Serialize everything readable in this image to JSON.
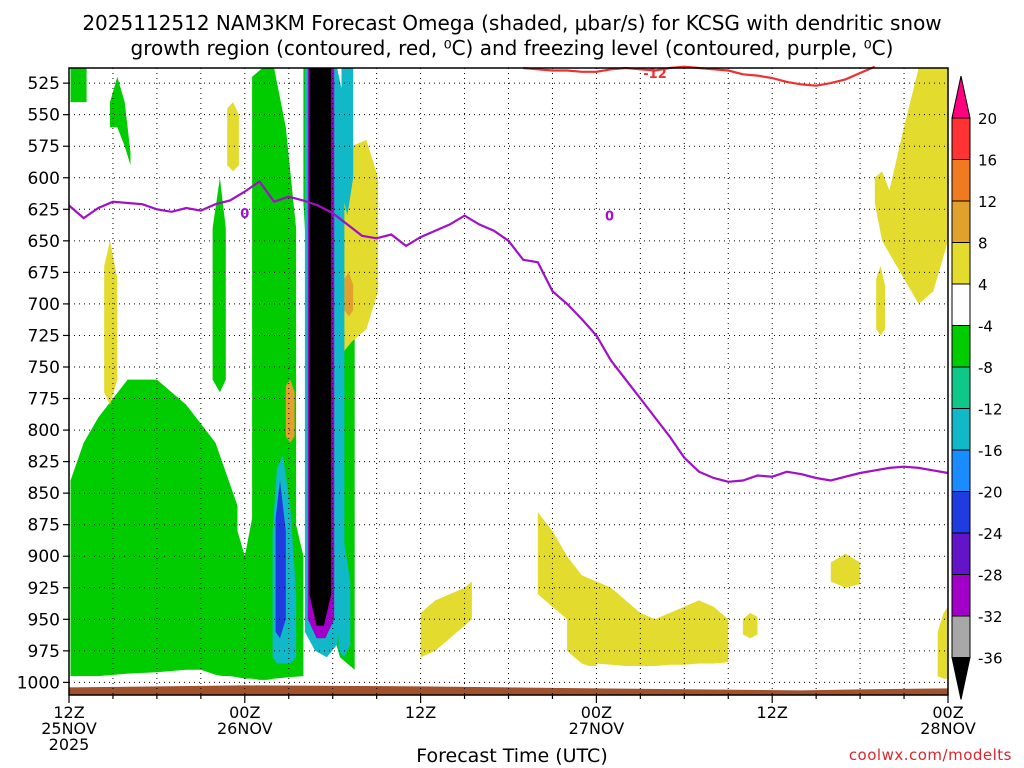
{
  "chart_data": {
    "type": "heatmap",
    "title": {
      "line1": "2025112512 NAM3KM Forecast Omega (shaded, μbar/s) for KCSG with dendritic snow",
      "line2": "growth region (contoured, red, ⁰C) and freezing level (contoured, purple, ⁰C)"
    },
    "xlabel": "Forecast Time (UTC)",
    "ylabel": "",
    "credit": "coolwx.com/modelts",
    "xlim_hours": [
      0,
      60
    ],
    "ylim_hpa": [
      513,
      1010
    ],
    "y_ticks": [
      525,
      550,
      575,
      600,
      625,
      650,
      675,
      700,
      725,
      750,
      775,
      800,
      825,
      850,
      875,
      900,
      925,
      950,
      975,
      1000
    ],
    "x_ticks": [
      {
        "hour": 0,
        "lines": [
          "12Z",
          "25NOV",
          "2025"
        ]
      },
      {
        "hour": 12,
        "lines": [
          "00Z",
          "26NOV"
        ]
      },
      {
        "hour": 24,
        "lines": [
          "12Z"
        ]
      },
      {
        "hour": 36,
        "lines": [
          "00Z",
          "27NOV"
        ]
      },
      {
        "hour": 48,
        "lines": [
          "12Z"
        ]
      },
      {
        "hour": 60,
        "lines": [
          "00Z",
          "28NOV"
        ]
      }
    ],
    "colorbar": {
      "levels": [
        {
          "label": "20",
          "color": "#ff0080"
        },
        {
          "label": "16",
          "color": "#ff3333"
        },
        {
          "label": "12",
          "color": "#f07a20"
        },
        {
          "label": "8",
          "color": "#e0a22c"
        },
        {
          "label": "4",
          "color": "#e3db2d"
        },
        {
          "label": "-4",
          "color": "#ffffff"
        },
        {
          "label": "-8",
          "color": "#00cc00"
        },
        {
          "label": "-12",
          "color": "#10c78a"
        },
        {
          "label": "-16",
          "color": "#10b8c8"
        },
        {
          "label": "-20",
          "color": "#1a8cff"
        },
        {
          "label": "-24",
          "color": "#1f3ce0"
        },
        {
          "label": "-28",
          "color": "#6414c8"
        },
        {
          "label": "-32",
          "color": "#a200c8"
        },
        {
          "label": "-36",
          "color": "#a8a8a8"
        },
        {
          "label": "",
          "color": "#000000"
        }
      ]
    },
    "freezing_level": {
      "name": "freezing level (0°C)",
      "color": "#a010c8",
      "label": "0",
      "hours": [
        0,
        1,
        2,
        3,
        4,
        5,
        6,
        7,
        8,
        9,
        10,
        11,
        12,
        13,
        14,
        15,
        16,
        17,
        18,
        19,
        20,
        21,
        22,
        23,
        24,
        25,
        26,
        27,
        28,
        29,
        30,
        31,
        32,
        33,
        34,
        35,
        36,
        37,
        38,
        39,
        40,
        41,
        42,
        43,
        44,
        45,
        46,
        47,
        48,
        49,
        50,
        51,
        52,
        53,
        54,
        55,
        56,
        57,
        58,
        59,
        60
      ],
      "hpa": [
        622,
        632,
        624,
        619,
        620,
        621,
        625,
        627,
        624,
        626,
        621,
        618,
        611,
        603,
        619,
        615,
        618,
        622,
        628,
        637,
        646,
        648,
        645,
        654,
        647,
        642,
        637,
        630,
        637,
        642,
        650,
        665,
        667,
        690,
        700,
        712,
        725,
        745,
        760,
        775,
        790,
        805,
        822,
        833,
        838,
        841,
        840,
        836,
        837,
        833,
        835,
        838,
        840,
        837,
        834,
        832,
        830,
        829,
        830,
        832,
        834
      ]
    },
    "dgz_line": {
      "name": "dendritic snow growth region (-12°C)",
      "color": "#f03030",
      "label": "-12",
      "hours": [
        31,
        32,
        33,
        34,
        35,
        36,
        37,
        38,
        39,
        40,
        41,
        42,
        43,
        44,
        45,
        46,
        47,
        48,
        49,
        50,
        51,
        52,
        53,
        54,
        55
      ],
      "hpa": [
        513,
        514,
        515,
        515,
        516,
        516,
        514,
        513,
        514,
        515,
        513,
        512,
        513,
        514,
        515,
        518,
        519,
        521,
        524,
        526,
        527,
        525,
        522,
        517,
        512
      ]
    },
    "omega_regions": [
      {
        "name": "green-1",
        "color": "#00cc00",
        "hours": [
          0.1,
          0.3,
          0.9,
          1.1,
          1.2
        ],
        "hpa_top": [
          513,
          513,
          513,
          513,
          513
        ],
        "hpa_bot": [
          540,
          540,
          540,
          540,
          540
        ]
      },
      {
        "name": "green-2",
        "color": "#00cc00",
        "hours": [
          0.1,
          1,
          2,
          4,
          6,
          8,
          10,
          11.5
        ],
        "hpa_top": [
          840,
          810,
          790,
          760,
          760,
          780,
          810,
          860
        ],
        "hpa_bot": [
          995,
          995,
          995,
          993,
          992,
          990,
          990,
          990
        ]
      },
      {
        "name": "green-3",
        "color": "#00cc00",
        "hours": [
          2.8,
          3.3,
          3.8,
          4.2
        ],
        "hpa_top": [
          540,
          520,
          540,
          580
        ],
        "hpa_bot": [
          560,
          560,
          575,
          590
        ]
      },
      {
        "name": "green-4",
        "color": "#00cc00",
        "hours": [
          9,
          9.5,
          10,
          10.5,
          11,
          11.5,
          12,
          12.5,
          13,
          13.5,
          14,
          15,
          16
        ],
        "hpa_top": [
          890,
          880,
          870,
          860,
          870,
          880,
          900,
          870,
          810,
          790,
          800,
          850,
          900
        ],
        "hpa_bot": [
          990,
          992,
          994,
          995,
          995,
          996,
          997,
          997,
          998,
          998,
          997,
          996,
          995
        ]
      },
      {
        "name": "green-5",
        "color": "#00cc00",
        "hours": [
          9.8,
          10.3,
          10.7
        ],
        "hpa_top": [
          640,
          600,
          640
        ],
        "hpa_bot": [
          760,
          770,
          760
        ]
      },
      {
        "name": "green-6",
        "color": "#00cc00",
        "hours": [
          12.5,
          13.2,
          14,
          14.8,
          15.5
        ],
        "hpa_top": [
          520,
          513,
          513,
          560,
          640
        ],
        "hpa_bot": [
          900,
          900,
          930,
          960,
          990
        ]
      },
      {
        "name": "green-7",
        "color": "#00cc00",
        "hours": [
          16,
          16.5,
          17,
          17.5,
          18,
          18.5,
          19,
          19.5
        ],
        "hpa_top": [
          513,
          513,
          513,
          513,
          530,
          560,
          620,
          700
        ],
        "hpa_bot": [
          620,
          720,
          820,
          910,
          960,
          980,
          985,
          990
        ]
      },
      {
        "name": "green-8",
        "color": "#00cc00",
        "hours": [
          18.3,
          18.8,
          19.3
        ],
        "hpa_top": [
          750,
          740,
          760
        ],
        "hpa_bot": [
          860,
          860,
          860
        ]
      },
      {
        "name": "yellow-1",
        "color": "#e3db2d",
        "hours": [
          2.4,
          2.8,
          3.3
        ],
        "hpa_top": [
          670,
          650,
          680
        ],
        "hpa_bot": [
          770,
          780,
          760
        ]
      },
      {
        "name": "yellow-2",
        "color": "#e3db2d",
        "hours": [
          10.8,
          11.2,
          11.6
        ],
        "hpa_top": [
          545,
          540,
          550
        ],
        "hpa_bot": [
          590,
          595,
          590
        ]
      },
      {
        "name": "yellow-3",
        "color": "#e3db2d",
        "hours": [
          16.9,
          17.6,
          18.4
        ],
        "hpa_top": [
          750,
          740,
          760
        ],
        "hpa_bot": [
          840,
          840,
          840
        ]
      },
      {
        "name": "yellow-4",
        "color": "#e3db2d",
        "hours": [
          18.6,
          19.3,
          20.3,
          21.1
        ],
        "hpa_top": [
          600,
          575,
          570,
          600
        ],
        "hpa_bot": [
          740,
          730,
          720,
          690
        ]
      },
      {
        "name": "yellow-5",
        "color": "#e3db2d",
        "hours": [
          24,
          25,
          26,
          27,
          27.5
        ],
        "hpa_top": [
          945,
          935,
          930,
          925,
          920
        ],
        "hpa_bot": [
          980,
          975,
          965,
          955,
          950
        ]
      },
      {
        "name": "yellow-6",
        "color": "#e3db2d",
        "hours": [
          32,
          33,
          34,
          35,
          36,
          37,
          38,
          39,
          40,
          41,
          42,
          43,
          44,
          45
        ],
        "hpa_top": [
          865,
          880,
          900,
          915,
          920,
          925,
          935,
          945,
          950,
          945,
          940,
          935,
          940,
          950
        ],
        "hpa_bot": [
          930,
          940,
          950,
          955,
          985,
          986,
          987,
          987,
          987,
          986,
          986,
          985,
          985,
          984
        ]
      },
      {
        "name": "yellow-7",
        "color": "#e3db2d",
        "hours": [
          34,
          34.5,
          35,
          35.5,
          36
        ],
        "hpa_top": [
          940,
          930,
          935,
          945,
          950
        ],
        "hpa_bot": [
          975,
          980,
          985,
          987,
          987
        ]
      },
      {
        "name": "yellow-8",
        "color": "#e3db2d",
        "hours": [
          46,
          46.5,
          47
        ],
        "hpa_top": [
          950,
          945,
          948
        ],
        "hpa_bot": [
          962,
          965,
          962
        ]
      },
      {
        "name": "yellow-9",
        "color": "#e3db2d",
        "hours": [
          52,
          53,
          54
        ],
        "hpa_top": [
          905,
          898,
          905
        ],
        "hpa_bot": [
          920,
          925,
          922
        ]
      },
      {
        "name": "yellow-10",
        "color": "#e3db2d",
        "hours": [
          55,
          55.5,
          56,
          57,
          58,
          59,
          60
        ],
        "hpa_top": [
          600,
          595,
          610,
          560,
          513,
          513,
          513
        ],
        "hpa_bot": [
          620,
          650,
          660,
          680,
          700,
          690,
          650
        ]
      },
      {
        "name": "yellow-11",
        "color": "#e3db2d",
        "hours": [
          55.1,
          55.4,
          55.7
        ],
        "hpa_top": [
          680,
          670,
          685
        ],
        "hpa_bot": [
          720,
          725,
          720
        ]
      },
      {
        "name": "yellow-12",
        "color": "#e3db2d",
        "hours": [
          59.3,
          59.7,
          60
        ],
        "hpa_top": [
          960,
          945,
          940
        ],
        "hpa_bot": [
          995,
          997,
          997
        ]
      },
      {
        "name": "orange-1",
        "color": "#e0a22c",
        "hours": [
          14.8,
          15.1,
          15.4
        ],
        "hpa_top": [
          765,
          760,
          770
        ],
        "hpa_bot": [
          805,
          810,
          805
        ]
      },
      {
        "name": "orange-2",
        "color": "#e0a22c",
        "hours": [
          18.8,
          19.1,
          19.4
        ],
        "hpa_top": [
          680,
          675,
          685
        ],
        "hpa_bot": [
          705,
          710,
          705
        ]
      }
    ],
    "omega_core": [
      {
        "name": "core-cyan",
        "color": "#10b8c8",
        "hours": [
          13.9,
          14.2,
          14.6,
          15.1,
          15.5
        ],
        "hpa_top": [
          880,
          830,
          820,
          860,
          930
        ],
        "hpa_bot": [
          980,
          985,
          985,
          985,
          980
        ]
      },
      {
        "name": "core-blue",
        "color": "#1f3ce0",
        "hours": [
          14.1,
          14.4,
          14.8
        ],
        "hpa_top": [
          870,
          840,
          880
        ],
        "hpa_bot": [
          960,
          965,
          950
        ]
      },
      {
        "name": "core-cyan-2",
        "color": "#10b8c8",
        "hours": [
          16.1,
          16.8,
          17.6,
          18.3,
          18.8
        ],
        "hpa_top": [
          513,
          513,
          513,
          513,
          540
        ],
        "hpa_bot": [
          960,
          975,
          980,
          970,
          930
        ]
      },
      {
        "name": "core-purple",
        "color": "#a200c8",
        "hours": [
          16.3,
          16.9,
          17.5,
          18.1
        ],
        "hpa_top": [
          513,
          513,
          513,
          513
        ],
        "hpa_bot": [
          950,
          965,
          965,
          950
        ]
      },
      {
        "name": "core-black",
        "color": "#000000",
        "hours": [
          16.4,
          16.9,
          17.4,
          17.9
        ],
        "hpa_top": [
          513,
          513,
          513,
          513
        ],
        "hpa_bot": [
          930,
          955,
          955,
          930
        ]
      },
      {
        "name": "core-cyan-3",
        "color": "#10b8c8",
        "hours": [
          18.6,
          19.0,
          19.4
        ],
        "hpa_top": [
          513,
          513,
          513
        ],
        "hpa_bot": [
          610,
          630,
          600
        ]
      },
      {
        "name": "core-cyan-4",
        "color": "#10b8c8",
        "hours": [
          18.4,
          18.8,
          19.2
        ],
        "hpa_top": [
          900,
          890,
          920
        ],
        "hpa_bot": [
          975,
          980,
          970
        ]
      }
    ],
    "terrain": {
      "name": "ground",
      "color": "#a0522d",
      "hpa": 1000
    }
  }
}
